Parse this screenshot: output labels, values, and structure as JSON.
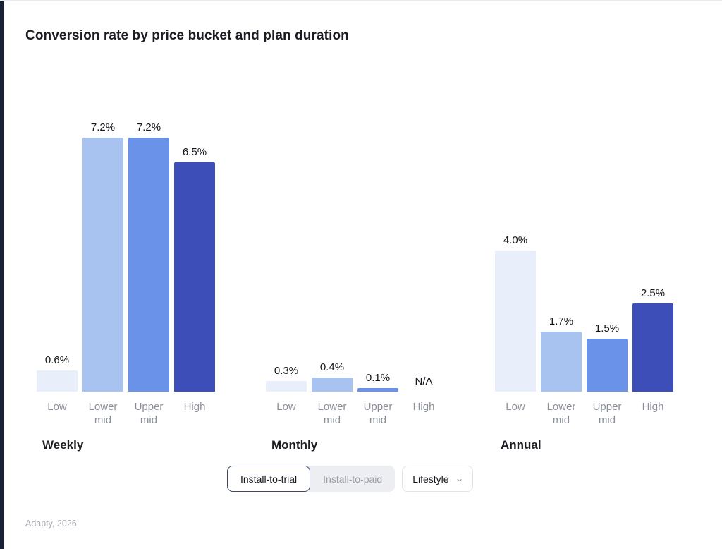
{
  "page": {
    "title": "Conversion rate by price bucket and plan duration",
    "footer": "Adapty, 2026"
  },
  "chart_data": {
    "type": "bar",
    "title": "Conversion rate by price bucket and plan duration",
    "categories": [
      "Low",
      "Lower mid",
      "Upper mid",
      "High"
    ],
    "groups": [
      {
        "label": "Weekly",
        "values": [
          0.6,
          7.2,
          7.2,
          6.5
        ],
        "value_labels": [
          "0.6%",
          "7.2%",
          "7.2%",
          "6.5%"
        ]
      },
      {
        "label": "Monthly",
        "values": [
          0.3,
          0.4,
          0.1,
          null
        ],
        "value_labels": [
          "0.3%",
          "0.4%",
          "0.1%",
          "N/A"
        ]
      },
      {
        "label": "Annual",
        "values": [
          4.0,
          1.7,
          1.5,
          2.5
        ],
        "value_labels": [
          "4.0%",
          "1.7%",
          "1.5%",
          "2.5%"
        ]
      }
    ],
    "bar_colors": [
      "#E9EEFB",
      "#A9C3F1",
      "#6A92E8",
      "#3D4EB8"
    ],
    "ylim": [
      0,
      8
    ],
    "unit": "%",
    "legend": "none",
    "grid": false
  },
  "controls": {
    "toggle": [
      {
        "label": "Install-to-trial",
        "active": true
      },
      {
        "label": "Install-to-paid",
        "active": false
      }
    ],
    "dropdown": {
      "value": "Lifestyle"
    }
  }
}
